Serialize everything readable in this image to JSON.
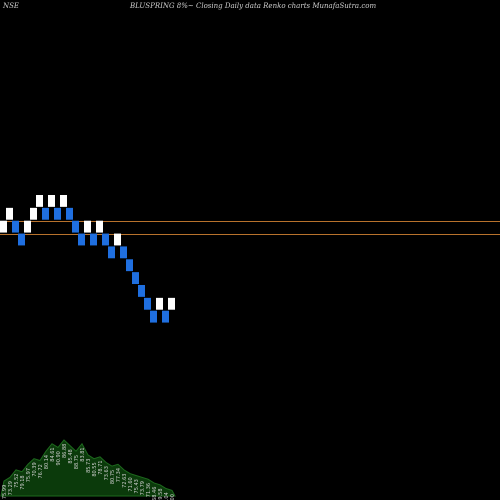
{
  "header": {
    "exchange": "NSE",
    "title": "BLUSPRING 8%~  Closing Daily data  Renko  charts MunafaSutra.com"
  },
  "colors": {
    "background": "#000000",
    "up_brick": "#ffffff",
    "down_brick": "#1f6fe0",
    "level_line": "#b8722c",
    "volume_fill": "#0b3a0b",
    "volume_outline": "#1e6a1e",
    "volume_label": "#cfcfcf"
  },
  "chart_data": {
    "type": "renko",
    "brick_size_percent": 8,
    "y_range": [
      12,
      40
    ],
    "levels": [
      27.5,
      26.5
    ],
    "bricks": [
      {
        "dir": "up",
        "low": 26.5,
        "high": 27.5
      },
      {
        "dir": "up",
        "low": 27.5,
        "high": 28.5
      },
      {
        "dir": "down",
        "low": 26.5,
        "high": 27.5
      },
      {
        "dir": "down",
        "low": 25.5,
        "high": 26.5
      },
      {
        "dir": "up",
        "low": 26.5,
        "high": 27.5
      },
      {
        "dir": "up",
        "low": 27.5,
        "high": 28.5
      },
      {
        "dir": "up",
        "low": 28.5,
        "high": 29.5
      },
      {
        "dir": "down",
        "low": 27.5,
        "high": 28.5
      },
      {
        "dir": "up",
        "low": 28.5,
        "high": 29.5
      },
      {
        "dir": "down",
        "low": 27.5,
        "high": 28.5
      },
      {
        "dir": "up",
        "low": 28.5,
        "high": 29.5
      },
      {
        "dir": "down",
        "low": 27.5,
        "high": 28.5
      },
      {
        "dir": "down",
        "low": 26.5,
        "high": 27.5
      },
      {
        "dir": "down",
        "low": 25.5,
        "high": 26.5
      },
      {
        "dir": "up",
        "low": 26.5,
        "high": 27.5
      },
      {
        "dir": "down",
        "low": 25.5,
        "high": 26.5
      },
      {
        "dir": "up",
        "low": 26.5,
        "high": 27.5
      },
      {
        "dir": "down",
        "low": 25.5,
        "high": 26.5
      },
      {
        "dir": "down",
        "low": 24.5,
        "high": 25.5
      },
      {
        "dir": "up",
        "low": 25.5,
        "high": 26.5
      },
      {
        "dir": "down",
        "low": 24.5,
        "high": 25.5
      },
      {
        "dir": "down",
        "low": 23.5,
        "high": 24.5
      },
      {
        "dir": "down",
        "low": 22.5,
        "high": 23.5
      },
      {
        "dir": "down",
        "low": 21.5,
        "high": 22.5
      },
      {
        "dir": "down",
        "low": 20.5,
        "high": 21.5
      },
      {
        "dir": "down",
        "low": 19.5,
        "high": 20.5
      },
      {
        "dir": "up",
        "low": 20.5,
        "high": 21.5
      },
      {
        "dir": "down",
        "low": 19.5,
        "high": 20.5
      },
      {
        "dir": "up",
        "low": 20.5,
        "high": 21.5
      }
    ],
    "volume": {
      "values": [
        8,
        10,
        14,
        13,
        17,
        20,
        19,
        24,
        28,
        26,
        30,
        27,
        24,
        28,
        22,
        20,
        21,
        18,
        16,
        17,
        14,
        12,
        11,
        10,
        9,
        7,
        6,
        4,
        3
      ],
      "labels": [
        "75.99",
        "73.29",
        "75.52",
        "79.18",
        "75.97",
        "70.39",
        "76.72",
        "80.14",
        "84.61",
        "90.90",
        "86.88",
        "85.48",
        "88.75",
        "83.81",
        "85.73",
        "80.55",
        "78.71",
        "73.63",
        "80.75",
        "77.34",
        "72.63",
        "71.60",
        "75.43",
        "73.79",
        "71.36",
        "68.46",
        "69.58",
        "65.04",
        "67.00"
      ]
    }
  }
}
